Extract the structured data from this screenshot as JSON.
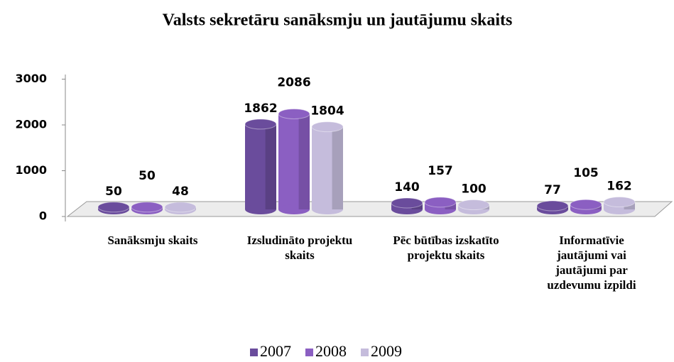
{
  "chart_data": {
    "type": "bar3d",
    "title": "Valsts sekretāru sanāksmju un jautājumu skaits",
    "categories": [
      "Sanāksmju skaits",
      "Izsludināto projektu skaits",
      "Pēc būtības izskatīto projektu skaits",
      "Informatīvie jautājumi vai jautājumi par uzdevumu izpildi"
    ],
    "series": [
      {
        "name": "2007",
        "color": "#6a4c9c",
        "values": [
          50,
          1862,
          140,
          77
        ]
      },
      {
        "name": "2008",
        "color": "#8b5fc2",
        "values": [
          50,
          2086,
          157,
          105
        ]
      },
      {
        "name": "2009",
        "color": "#c5bcdc",
        "values": [
          48,
          1804,
          100,
          162
        ]
      }
    ],
    "ylim": [
      0,
      3000
    ],
    "yticks": [
      0,
      1000,
      2000,
      3000
    ],
    "grid": false,
    "legend": "bottom"
  }
}
